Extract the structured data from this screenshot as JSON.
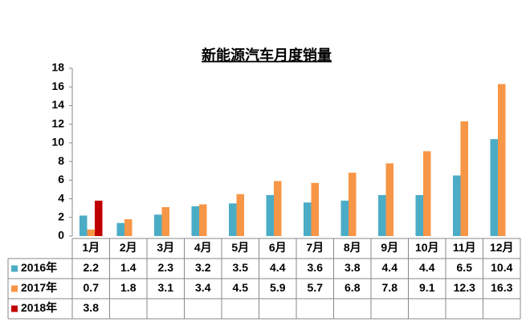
{
  "chart_data": {
    "type": "bar",
    "title": "新能源汽车月度销量",
    "categories": [
      "1月",
      "2月",
      "3月",
      "4月",
      "5月",
      "6月",
      "7月",
      "8月",
      "9月",
      "10月",
      "11月",
      "12月"
    ],
    "series": [
      {
        "name": "2016年",
        "color": "#4bacc6",
        "values": [
          2.2,
          1.4,
          2.3,
          3.2,
          3.5,
          4.4,
          3.6,
          3.8,
          4.4,
          4.4,
          6.5,
          10.4
        ]
      },
      {
        "name": "2017年",
        "color": "#f79646",
        "values": [
          0.7,
          1.8,
          3.1,
          3.4,
          4.5,
          5.9,
          5.7,
          6.8,
          7.8,
          9.1,
          12.3,
          16.3
        ]
      },
      {
        "name": "2018年",
        "color": "#c00000",
        "values": [
          3.8,
          null,
          null,
          null,
          null,
          null,
          null,
          null,
          null,
          null,
          null,
          null
        ]
      }
    ],
    "ylim": [
      0,
      18
    ],
    "yticks": [
      0,
      2,
      4,
      6,
      8,
      10,
      12,
      14,
      16,
      18
    ],
    "grid": false,
    "data_table": true
  }
}
